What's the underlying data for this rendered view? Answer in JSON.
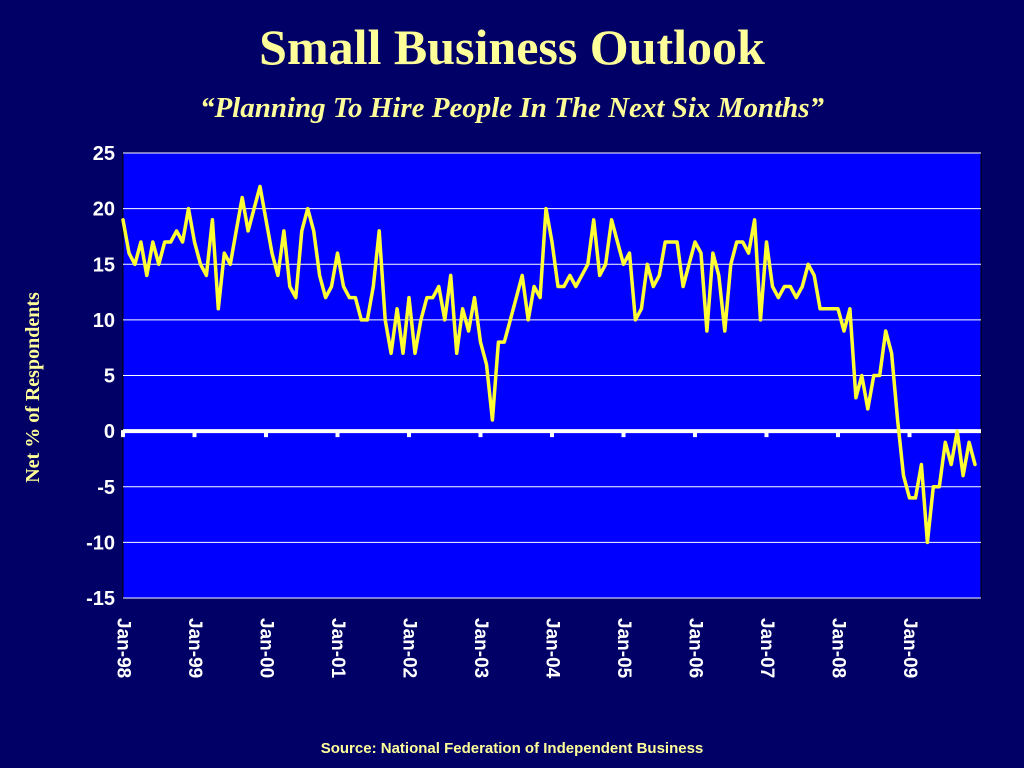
{
  "title": "Small Business Outlook",
  "subtitle": "“Planning To Hire People In The Next Six Months”",
  "source": "Source:  National Federation of Independent Business",
  "colors": {
    "background": "#000066",
    "plot_area": "#0000FF",
    "line": "#FFFF33",
    "title": "#FFFF99",
    "axis_text": "#FFFFFF",
    "gridline": "#FFFFFF"
  },
  "chart_data": {
    "type": "line",
    "title": "",
    "xlabel": "",
    "ylabel": "Net % of Respondents",
    "ylim": [
      -15,
      25
    ],
    "yticks": [
      25,
      20,
      15,
      10,
      5,
      0,
      -5,
      -10,
      -15
    ],
    "x_tick_labels": [
      "Jan-98",
      "Jan-99",
      "Jan-00",
      "Jan-01",
      "Jan-02",
      "Jan-03",
      "Jan-04",
      "Jan-05",
      "Jan-06",
      "Jan-07",
      "Jan-08",
      "Jan-09"
    ],
    "grid": true,
    "series": [
      {
        "x_start": "Jan-98",
        "frequency": "monthly",
        "values": [
          19,
          16,
          15,
          17,
          14,
          17,
          15,
          17,
          17,
          18,
          17,
          20,
          17,
          15,
          14,
          19,
          11,
          16,
          15,
          18,
          21,
          18,
          20,
          22,
          19,
          16,
          14,
          18,
          13,
          12,
          18,
          20,
          18,
          14,
          12,
          13,
          16,
          13,
          12,
          12,
          10,
          10,
          13,
          18,
          10,
          7,
          11,
          7,
          12,
          7,
          10,
          12,
          12,
          13,
          10,
          14,
          7,
          11,
          9,
          12,
          8,
          6,
          1,
          8,
          8,
          10,
          12,
          14,
          10,
          13,
          12,
          20,
          17,
          13,
          13,
          14,
          13,
          14,
          15,
          19,
          14,
          15,
          19,
          17,
          15,
          16,
          10,
          11,
          15,
          13,
          14,
          17,
          17,
          17,
          13,
          15,
          17,
          16,
          9,
          16,
          14,
          9,
          15,
          17,
          17,
          16,
          19,
          10,
          17,
          13,
          12,
          13,
          13,
          12,
          13,
          15,
          14,
          11,
          11,
          11,
          11,
          9,
          11,
          3,
          5,
          2,
          5,
          5,
          9,
          7,
          1,
          -4,
          -6,
          -6,
          -3,
          -10,
          -5,
          -5,
          -1,
          -3,
          0,
          -4,
          -1,
          -3
        ]
      }
    ]
  }
}
